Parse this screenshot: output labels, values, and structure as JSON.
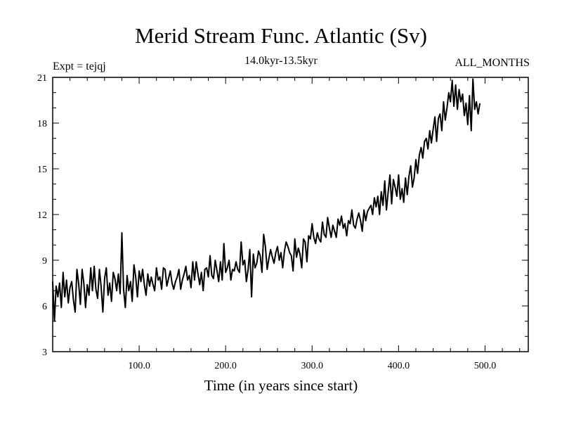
{
  "chart_data": {
    "type": "line",
    "title": "Merid Stream Func. Atlantic (Sv)",
    "subtitle": "14.0kyr-13.5kyr",
    "left_annotation": "Expt = tejqj",
    "right_annotation": "ALL_MONTHS",
    "xlabel": "Time (in years since start)",
    "ylabel": "",
    "xlim": [
      0,
      550
    ],
    "ylim": [
      3,
      21
    ],
    "xticks": [
      100,
      200,
      300,
      400,
      500
    ],
    "xtick_labels": [
      "100.0",
      "200.0",
      "300.0",
      "400.0",
      "500.0"
    ],
    "yticks": [
      3,
      6,
      9,
      12,
      15,
      18,
      21
    ],
    "ytick_labels": [
      "3",
      "6",
      "9",
      "12",
      "15",
      "18",
      "21"
    ],
    "grid": false,
    "series": [
      {
        "name": "tejqj",
        "color": "#000000",
        "x_start": 0,
        "x_step": 2,
        "values": [
          7.6,
          5.0,
          7.3,
          6.6,
          7.5,
          5.9,
          8.2,
          6.6,
          7.7,
          6.2,
          7.2,
          7.6,
          6.4,
          5.6,
          8.4,
          7.5,
          6.1,
          8.4,
          7.5,
          5.9,
          7.4,
          6.7,
          8.5,
          7.0,
          8.6,
          7.1,
          6.5,
          8.4,
          7.3,
          5.6,
          7.8,
          8.5,
          6.7,
          7.5,
          6.3,
          8.2,
          7.8,
          7.0,
          8.1,
          6.8,
          10.8,
          7.1,
          5.9,
          8.0,
          7.0,
          7.6,
          6.3,
          8.7,
          7.9,
          6.6,
          8.3,
          7.6,
          8.4,
          7.4,
          6.7,
          8.1,
          7.3,
          7.9,
          7.4,
          7.0,
          8.5,
          7.7,
          7.9,
          7.1,
          8.5,
          8.4,
          7.3,
          7.8,
          8.3,
          7.5,
          7.1,
          7.6,
          7.9,
          8.4,
          7.1,
          7.7,
          8.1,
          8.6,
          7.7,
          8.0,
          7.2,
          8.9,
          7.7,
          8.9,
          8.1,
          7.4,
          8.2,
          7.0,
          8.4,
          8.5,
          7.9,
          9.3,
          8.0,
          7.8,
          9.0,
          8.3,
          7.6,
          8.9,
          7.7,
          10.1,
          8.2,
          8.5,
          9.0,
          7.7,
          8.4,
          8.3,
          8.9,
          8.4,
          8.2,
          10.2,
          8.7,
          9.0,
          7.6,
          8.4,
          9.7,
          6.6,
          9.4,
          8.5,
          8.8,
          9.6,
          9.3,
          8.2,
          10.7,
          9.9,
          8.4,
          9.1,
          9.7,
          9.2,
          8.8,
          9.5,
          9.9,
          9.0,
          9.5,
          8.5,
          9.6,
          10.2,
          9.9,
          9.5,
          9.3,
          8.3,
          10.4,
          9.2,
          9.8,
          9.4,
          8.5,
          10.4,
          10.2,
          8.9,
          10.6,
          10.4,
          11.4,
          10.5,
          10.1,
          10.8,
          10.4,
          10.2,
          11.5,
          10.7,
          10.5,
          11.8,
          11.1,
          10.5,
          11.3,
          10.9,
          10.5,
          11.7,
          11.3,
          11.9,
          11.1,
          11.4,
          10.6,
          11.6,
          11.4,
          12.3,
          11.3,
          11.1,
          11.7,
          12.1,
          11.6,
          10.9,
          12.3,
          11.6,
          12.2,
          12.4,
          12.6,
          12.0,
          13.1,
          12.5,
          13.2,
          12.0,
          13.5,
          12.6,
          14.2,
          12.3,
          13.5,
          14.6,
          12.7,
          14.3,
          13.8,
          13.2,
          14.6,
          13.0,
          13.7,
          12.8,
          14.4,
          13.3,
          14.5,
          15.2,
          13.8,
          14.4,
          15.6,
          14.7,
          15.9,
          16.4,
          15.7,
          16.8,
          17.0,
          16.3,
          17.5,
          16.7,
          17.6,
          18.4,
          16.8,
          18.3,
          18.6,
          17.5,
          19.4,
          18.2,
          19.0,
          20.0,
          19.4,
          20.8,
          19.1,
          20.5,
          18.9,
          20.2,
          19.4,
          19.9,
          18.5,
          19.3,
          17.9,
          19.8,
          17.5,
          20.9,
          18.9,
          19.4,
          18.6,
          19.3
        ]
      }
    ]
  }
}
